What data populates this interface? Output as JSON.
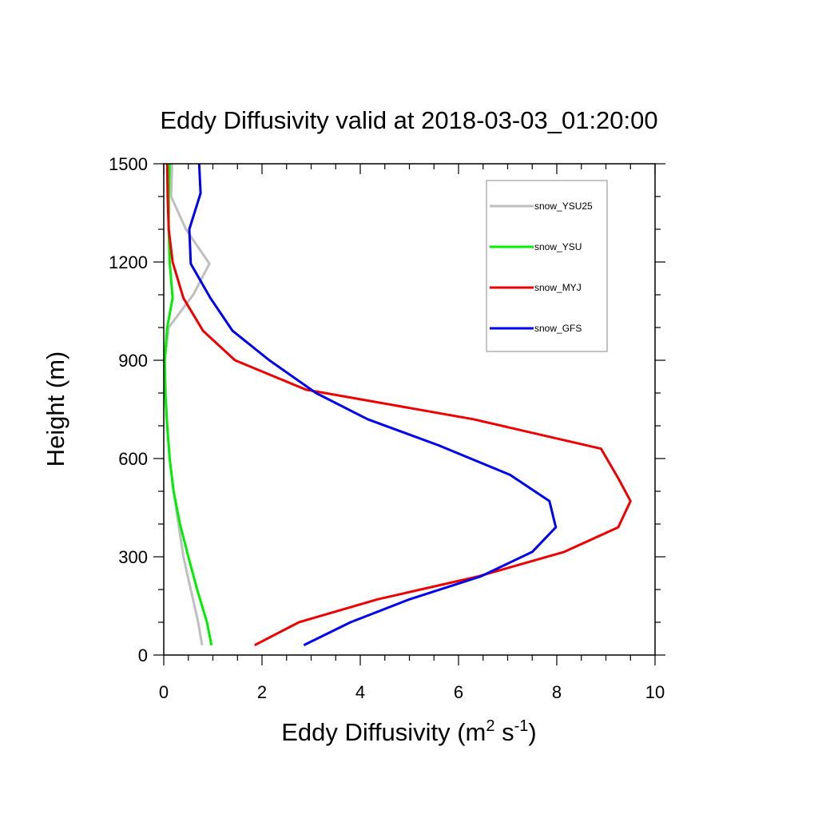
{
  "chart_data": {
    "type": "line",
    "title": "Eddy Diffusivity valid at 2018-03-03_01:20:00",
    "xlabel": {
      "main": "Eddy Diffusivity (m",
      "sup1": "2",
      "mid": " s",
      "sup2": "-1",
      "end": ")"
    },
    "ylabel": "Height (m)",
    "xlim": [
      0,
      10
    ],
    "ylim": [
      0,
      1500
    ],
    "x_ticks": [
      0,
      2,
      4,
      6,
      8,
      10
    ],
    "y_ticks": [
      0,
      300,
      600,
      900,
      1200,
      1500
    ],
    "x_tick_labels": [
      "0",
      "2",
      "4",
      "6",
      "8",
      "10"
    ],
    "y_tick_labels": [
      "0",
      "300",
      "600",
      "900",
      "1200",
      "1500"
    ],
    "grid": false,
    "legend_position": "top-right",
    "series": [
      {
        "name": "snow_YSU25",
        "color": "#bfbfbf",
        "points": [
          [
            0.78,
            30
          ],
          [
            0.7,
            100
          ],
          [
            0.55,
            200
          ],
          [
            0.4,
            300
          ],
          [
            0.3,
            400
          ],
          [
            0.2,
            500
          ],
          [
            0.12,
            600
          ],
          [
            0.07,
            700
          ],
          [
            0.04,
            800
          ],
          [
            0.02,
            900
          ],
          [
            0.1,
            1000
          ],
          [
            0.6,
            1100
          ],
          [
            0.93,
            1195
          ],
          [
            0.45,
            1300
          ],
          [
            0.15,
            1400
          ],
          [
            0.17,
            1500
          ]
        ]
      },
      {
        "name": "snow_YSU",
        "color": "#00ee00",
        "points": [
          [
            0.97,
            30
          ],
          [
            0.88,
            100
          ],
          [
            0.68,
            200
          ],
          [
            0.5,
            300
          ],
          [
            0.33,
            400
          ],
          [
            0.2,
            500
          ],
          [
            0.12,
            600
          ],
          [
            0.07,
            700
          ],
          [
            0.03,
            800
          ],
          [
            0.02,
            900
          ],
          [
            0.07,
            1000
          ],
          [
            0.18,
            1090
          ],
          [
            0.12,
            1200
          ],
          [
            0.1,
            1300
          ],
          [
            0.1,
            1400
          ],
          [
            0.12,
            1500
          ]
        ]
      },
      {
        "name": "snow_MYJ",
        "color": "#ee0000",
        "points": [
          [
            1.85,
            30
          ],
          [
            2.75,
            100
          ],
          [
            4.35,
            170
          ],
          [
            6.4,
            240
          ],
          [
            8.15,
            315
          ],
          [
            9.25,
            390
          ],
          [
            9.5,
            470
          ],
          [
            9.25,
            540
          ],
          [
            8.9,
            630
          ],
          [
            6.3,
            720
          ],
          [
            2.9,
            810
          ],
          [
            1.45,
            900
          ],
          [
            0.8,
            990
          ],
          [
            0.4,
            1090
          ],
          [
            0.18,
            1200
          ],
          [
            0.1,
            1300
          ],
          [
            0.08,
            1400
          ],
          [
            0.07,
            1500
          ]
        ]
      },
      {
        "name": "snow_GFS",
        "color": "#0000ee",
        "points": [
          [
            2.85,
            30
          ],
          [
            3.8,
            100
          ],
          [
            5.0,
            170
          ],
          [
            6.45,
            240
          ],
          [
            7.5,
            315
          ],
          [
            7.98,
            390
          ],
          [
            7.85,
            470
          ],
          [
            7.05,
            550
          ],
          [
            5.6,
            640
          ],
          [
            4.15,
            720
          ],
          [
            3.1,
            800
          ],
          [
            2.15,
            900
          ],
          [
            1.4,
            990
          ],
          [
            0.95,
            1090
          ],
          [
            0.55,
            1195
          ],
          [
            0.52,
            1300
          ],
          [
            0.75,
            1410
          ],
          [
            0.72,
            1500
          ]
        ]
      }
    ]
  }
}
